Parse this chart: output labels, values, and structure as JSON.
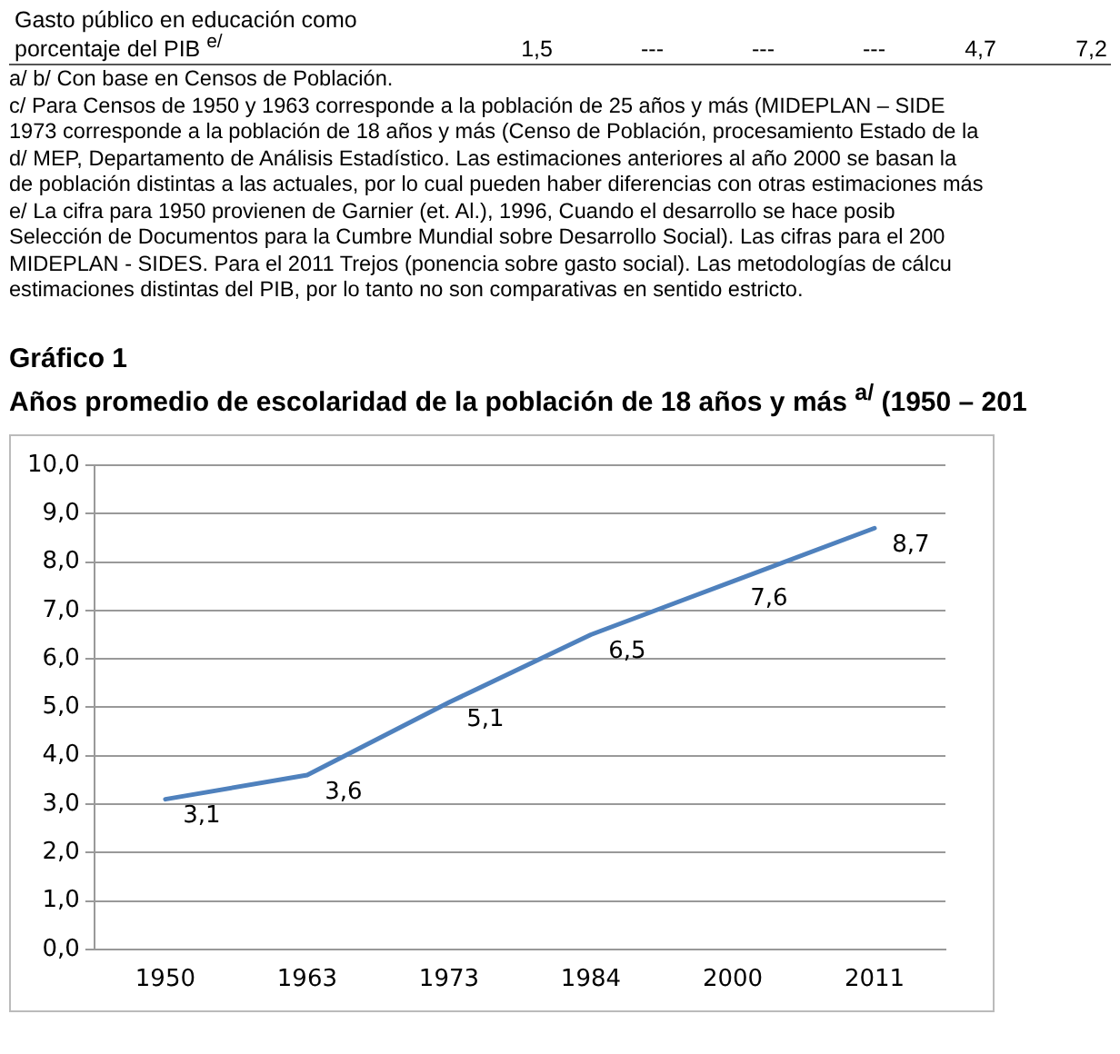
{
  "chart_data": {
    "type": "line",
    "title": "Gráfico 1",
    "subtitle": "Años promedio de escolaridad de la población de 18 años y más $^{a/}$ (1950 – 201",
    "categories": [
      "1950",
      "1963",
      "1973",
      "1984",
      "2000",
      "2011"
    ],
    "series": [
      {
        "color": "#4f81bd",
        "values": [
          3.1,
          3.6,
          5.1,
          6.5,
          7.6,
          8.7
        ],
        "value_labels": [
          "3,1",
          "3,6",
          "5,1",
          "6,5",
          "7,6",
          "8,7"
        ]
      }
    ],
    "ylim": [
      0,
      10
    ],
    "yticks": [
      {
        "value": 0,
        "label": "0,0"
      },
      {
        "value": 1,
        "label": "1,0"
      },
      {
        "value": 2,
        "label": "2,0"
      },
      {
        "value": 3,
        "label": "3,0"
      },
      {
        "value": 4,
        "label": "4,0"
      },
      {
        "value": 5,
        "label": "5,0"
      },
      {
        "value": 6,
        "label": "6,0"
      },
      {
        "value": 7,
        "label": "7,0"
      },
      {
        "value": 8,
        "label": "8,0"
      },
      {
        "value": 9,
        "label": "9,0"
      },
      {
        "value": 10,
        "label": "10,0"
      }
    ],
    "grid": "y",
    "legend": false,
    "marker": "none",
    "line_style": "solid",
    "annotations": [
      "Gasto público en educación como porcentaje del PIB $^{e/}$",
      "1,5",
      "---",
      "---",
      "---",
      "4,7",
      "7,2",
      "a/ b/ Con base en Censos de Población.",
      "c/ Para Censos de 1950 y 1963 corresponde a la población de 25 años y más (MIDEPLAN – SIDE",
      "1973 corresponde a la población de 18 años y más (Censo de Población, procesamiento Estado de la",
      "d/ MEP, Departamento de Análisis Estadístico. Las estimaciones anteriores al año 2000 se basan la",
      "de población distintas a las actuales, por lo cual pueden haber diferencias con otras estimaciones más",
      "e/ La cifra para 1950 provienen de Garnier (et. Al.), 1996, Cuando el desarrollo se hace posib",
      "Selección de Documentos para la Cumbre Mundial sobre Desarrollo Social). Las cifras para el 200",
      "MIDEPLAN - SIDES. Para el 2011 Trejos (ponencia sobre gasto social). Las metodologías de cálcu",
      "estimaciones distintas del PIB, por lo tanto no son comparativas en sentido estricto."
    ]
  }
}
